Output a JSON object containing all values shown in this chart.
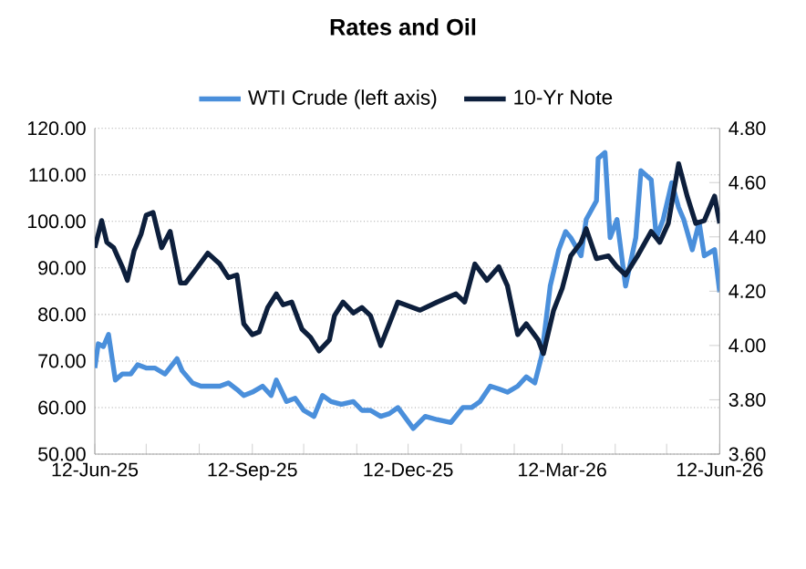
{
  "chart_data": {
    "type": "line",
    "title": "Rates and Oil",
    "legend": "top",
    "grid": "y",
    "xlim": [
      "2025-06-12",
      "2026-06-12"
    ],
    "xticks": [
      {
        "value": "2025-06-12",
        "label": "12-Jun-25"
      },
      {
        "value": "2025-07-12",
        "label": null
      },
      {
        "value": "2025-08-12",
        "label": null
      },
      {
        "value": "2025-09-12",
        "label": "12-Sep-25"
      },
      {
        "value": "2025-10-12",
        "label": null
      },
      {
        "value": "2025-11-12",
        "label": null
      },
      {
        "value": "2025-12-12",
        "label": "12-Dec-25"
      },
      {
        "value": "2026-01-12",
        "label": null
      },
      {
        "value": "2026-02-12",
        "label": null
      },
      {
        "value": "2026-03-12",
        "label": "12-Mar-26"
      },
      {
        "value": "2026-04-12",
        "label": null
      },
      {
        "value": "2026-05-12",
        "label": null
      },
      {
        "value": "2026-06-12",
        "label": "12-Jun-26"
      }
    ],
    "ylim": [
      50,
      120
    ],
    "yticks": [
      {
        "value": 50,
        "label": "50.00"
      },
      {
        "value": 60,
        "label": "60.00"
      },
      {
        "value": 70,
        "label": "70.00"
      },
      {
        "value": 80,
        "label": "80.00"
      },
      {
        "value": 90,
        "label": "90.00"
      },
      {
        "value": 100,
        "label": "100.00"
      },
      {
        "value": 110,
        "label": "110.00"
      },
      {
        "value": 120,
        "label": "120.00"
      }
    ],
    "y2lim": [
      3.6,
      4.8
    ],
    "y2ticks": [
      {
        "value": 3.6,
        "label": "3.60"
      },
      {
        "value": 3.8,
        "label": "3.80"
      },
      {
        "value": 4.0,
        "label": "4.00"
      },
      {
        "value": 4.2,
        "label": "4.20"
      },
      {
        "value": 4.4,
        "label": "4.40"
      },
      {
        "value": 4.6,
        "label": "4.60"
      },
      {
        "value": 4.8,
        "label": "4.80"
      }
    ],
    "series": [
      {
        "name": "WTI Crude (left axis)",
        "color": "#4a8fdb",
        "x": [
          "2025-06-12",
          "2025-06-14",
          "2025-06-17",
          "2025-06-20",
          "2025-06-24",
          "2025-06-28",
          "2025-07-03",
          "2025-07-07",
          "2025-07-12",
          "2025-07-17",
          "2025-07-23",
          "2025-07-30",
          "2025-08-02",
          "2025-08-08",
          "2025-08-13",
          "2025-08-18",
          "2025-08-24",
          "2025-08-29",
          "2025-09-03",
          "2025-09-07",
          "2025-09-12",
          "2025-09-18",
          "2025-09-23",
          "2025-09-26",
          "2025-10-02",
          "2025-10-07",
          "2025-10-12",
          "2025-10-18",
          "2025-10-23",
          "2025-10-28",
          "2025-11-03",
          "2025-11-10",
          "2025-11-15",
          "2025-11-20",
          "2025-11-26",
          "2025-12-01",
          "2025-12-06",
          "2025-12-15",
          "2025-12-22",
          "2025-12-29",
          "2026-01-06",
          "2026-01-13",
          "2026-01-18",
          "2026-01-23",
          "2026-01-29",
          "2026-02-03",
          "2026-02-08",
          "2026-02-14",
          "2026-02-19",
          "2026-02-24",
          "2026-02-28",
          "2026-03-05",
          "2026-03-10",
          "2026-03-14",
          "2026-03-17",
          "2026-03-23",
          "2026-03-26",
          "2026-04-01",
          "2026-04-02",
          "2026-04-06",
          "2026-04-09",
          "2026-04-13",
          "2026-04-18",
          "2026-04-24",
          "2026-04-27",
          "2026-05-03",
          "2026-05-06",
          "2026-05-10",
          "2026-05-15",
          "2026-05-19",
          "2026-05-22",
          "2026-05-27",
          "2026-05-31",
          "2026-06-03",
          "2026-06-09",
          "2026-06-12"
        ],
        "values": [
          68.5,
          73.7,
          73.1,
          75.7,
          65.9,
          67.2,
          67.2,
          69.2,
          68.5,
          68.5,
          67.2,
          70.5,
          67.9,
          65.3,
          64.6,
          64.6,
          64.6,
          65.3,
          63.9,
          62.6,
          63.3,
          64.6,
          62.6,
          65.9,
          61.3,
          62,
          59.4,
          58.1,
          62.6,
          61.3,
          60.7,
          61.3,
          59.4,
          59.4,
          58.1,
          58.7,
          60,
          55.5,
          58.1,
          57.4,
          56.8,
          60,
          60,
          61.3,
          64.6,
          64,
          63.3,
          64.6,
          66.6,
          65.3,
          71.1,
          86.1,
          93.9,
          97.8,
          96.5,
          92.6,
          100.4,
          104.4,
          113.5,
          114.8,
          96.5,
          100.4,
          86.1,
          96.5,
          110.9,
          108.9,
          96.5,
          100.4,
          108.3,
          103,
          100.4,
          93.9,
          99.8,
          92.6,
          93.9,
          84.8
        ]
      },
      {
        "name": "10-Yr Note",
        "color": "#0d1f3c",
        "axis": "y2",
        "x": [
          "2025-06-12",
          "2025-06-16",
          "2025-06-19",
          "2025-06-23",
          "2025-06-28",
          "2025-07-01",
          "2025-07-05",
          "2025-07-09",
          "2025-07-12",
          "2025-07-16",
          "2025-07-21",
          "2025-07-26",
          "2025-08-01",
          "2025-08-04",
          "2025-08-10",
          "2025-08-17",
          "2025-08-24",
          "2025-08-29",
          "2025-09-03",
          "2025-09-07",
          "2025-09-12",
          "2025-09-16",
          "2025-09-21",
          "2025-09-26",
          "2025-09-30",
          "2025-10-05",
          "2025-10-11",
          "2025-10-16",
          "2025-10-21",
          "2025-10-27",
          "2025-10-30",
          "2025-11-04",
          "2025-11-10",
          "2025-11-15",
          "2025-11-20",
          "2025-11-26",
          "2025-12-01",
          "2025-12-06",
          "2025-12-19",
          "2025-12-29",
          "2026-01-09",
          "2026-01-14",
          "2026-01-20",
          "2026-01-27",
          "2026-02-03",
          "2026-02-08",
          "2026-02-14",
          "2026-02-19",
          "2026-02-26",
          "2026-03-01",
          "2026-03-07",
          "2026-03-12",
          "2026-03-17",
          "2026-03-23",
          "2026-03-26",
          "2026-04-01",
          "2026-04-08",
          "2026-04-13",
          "2026-04-18",
          "2026-04-25",
          "2026-05-03",
          "2026-05-08",
          "2026-05-13",
          "2026-05-19",
          "2026-05-24",
          "2026-05-29",
          "2026-06-03",
          "2026-06-09",
          "2026-06-12"
        ],
        "values": [
          4.36,
          4.46,
          4.38,
          4.36,
          4.29,
          4.24,
          4.35,
          4.41,
          4.48,
          4.49,
          4.36,
          4.42,
          4.23,
          4.23,
          4.28,
          4.34,
          4.3,
          4.25,
          4.26,
          4.08,
          4.04,
          4.05,
          4.14,
          4.19,
          4.15,
          4.16,
          4.06,
          4.03,
          3.98,
          4.02,
          4.11,
          4.16,
          4.12,
          4.14,
          4.11,
          4.0,
          4.08,
          4.16,
          4.13,
          4.16,
          4.19,
          4.16,
          4.3,
          4.24,
          4.29,
          4.22,
          4.04,
          4.08,
          4.02,
          3.97,
          4.13,
          4.21,
          4.33,
          4.38,
          4.43,
          4.32,
          4.33,
          4.29,
          4.26,
          4.33,
          4.42,
          4.38,
          4.45,
          4.67,
          4.55,
          4.45,
          4.46,
          4.55,
          4.45
        ]
      }
    ]
  }
}
